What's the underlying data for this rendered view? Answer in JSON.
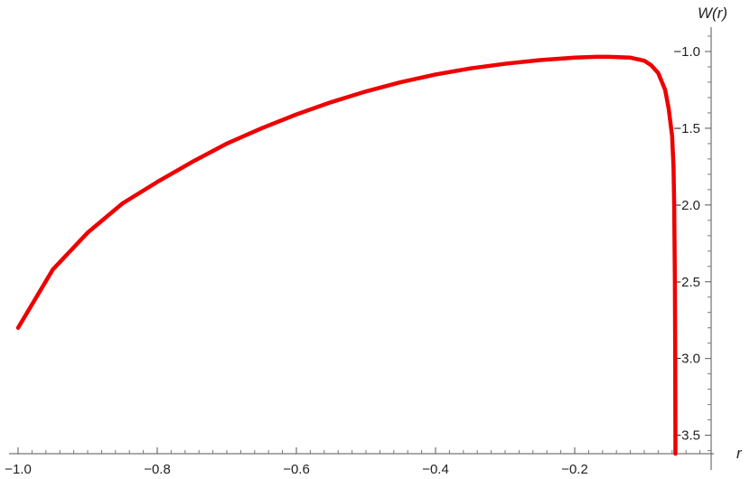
{
  "chart_data": {
    "type": "line",
    "title": "",
    "xlabel": "r",
    "ylabel": "W(r)",
    "xlim": [
      -1.0,
      0.0
    ],
    "ylim": [
      -3.62,
      -0.9
    ],
    "grid": false,
    "x_ticks": [
      -1.0,
      -0.8,
      -0.6,
      -0.4,
      -0.2
    ],
    "x_tick_labels": [
      "−1.0",
      "−0.8",
      "−0.6",
      "−0.4",
      "−0.2"
    ],
    "y_ticks": [
      -1.0,
      -1.5,
      -2.0,
      -2.5,
      -3.0,
      -3.5
    ],
    "y_tick_labels": [
      "−1.0",
      "−1.5",
      "−2.0",
      "−2.5",
      "−3.0",
      "−3.5"
    ],
    "series": [
      {
        "color": "#ee0000",
        "x": [
          -1.0,
          -0.95,
          -0.9,
          -0.85,
          -0.8,
          -0.75,
          -0.7,
          -0.65,
          -0.6,
          -0.55,
          -0.5,
          -0.45,
          -0.4,
          -0.35,
          -0.3,
          -0.25,
          -0.2,
          -0.17,
          -0.15,
          -0.12,
          -0.1,
          -0.09,
          -0.08,
          -0.07,
          -0.065,
          -0.06,
          -0.058,
          -0.057,
          -0.056,
          -0.0555,
          -0.0552
        ],
        "y": [
          -2.8,
          -2.42,
          -2.18,
          -1.99,
          -1.85,
          -1.72,
          -1.6,
          -1.5,
          -1.41,
          -1.33,
          -1.26,
          -1.2,
          -1.15,
          -1.11,
          -1.08,
          -1.056,
          -1.04,
          -1.035,
          -1.035,
          -1.04,
          -1.06,
          -1.09,
          -1.14,
          -1.25,
          -1.37,
          -1.55,
          -1.75,
          -2.0,
          -2.5,
          -3.0,
          -3.62
        ]
      }
    ]
  }
}
